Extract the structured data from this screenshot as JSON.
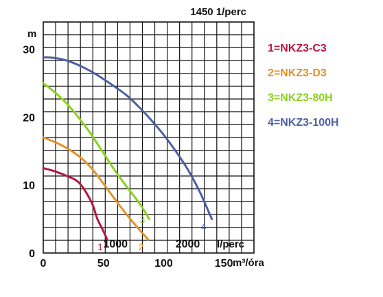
{
  "chart_data": {
    "type": "line",
    "title": "1450 1/perc",
    "ylabel": "m",
    "xlabel": "m³/óra",
    "xlabel_secondary": "l/perc",
    "xlim": [
      0,
      175
    ],
    "ylim": [
      0,
      34
    ],
    "grid": true,
    "legend_position": "right",
    "x_ticks": [
      "0",
      "50",
      "100",
      "150"
    ],
    "x_tick_values": [
      0,
      50,
      100,
      150
    ],
    "x_ticks_secondary": [
      "1000",
      "2000"
    ],
    "x_ticks_secondary_values": [
      60,
      120
    ],
    "y_ticks": [
      "0",
      "10",
      "20",
      "30"
    ],
    "y_tick_values": [
      0,
      10,
      20,
      30
    ],
    "series": [
      {
        "name": "1=NKZ3-C3",
        "marker_label": "1",
        "color": "#b5173f",
        "x": [
          0,
          10,
          20,
          30,
          40,
          45,
          50,
          53
        ],
        "y": [
          12.5,
          12.0,
          11.3,
          10.3,
          7.5,
          5.0,
          3.2,
          2.0
        ]
      },
      {
        "name": "2=NKZ3-D3",
        "marker_label": "2",
        "color": "#e0922a",
        "x": [
          0,
          10,
          20,
          30,
          40,
          50,
          60,
          70,
          80,
          87
        ],
        "y": [
          17.0,
          16.3,
          15.4,
          14.2,
          12.5,
          10.2,
          7.8,
          5.5,
          3.4,
          2.0
        ]
      },
      {
        "name": "3=NKZ3-80H",
        "marker_label": "3",
        "color": "#8ad11e",
        "x": [
          0,
          10,
          20,
          30,
          40,
          50,
          60,
          70,
          80,
          88
        ],
        "y": [
          25.0,
          23.6,
          21.9,
          19.8,
          17.4,
          14.7,
          12.0,
          9.6,
          7.3,
          5.0
        ]
      },
      {
        "name": "4=NKZ3-100H",
        "marker_label": "4",
        "color": "#4a5fa3",
        "x": [
          0,
          10,
          20,
          30,
          40,
          50,
          60,
          70,
          80,
          90,
          100,
          110,
          120,
          130,
          140
        ],
        "y": [
          28.8,
          28.7,
          28.3,
          27.6,
          26.7,
          25.6,
          24.4,
          23.1,
          21.4,
          19.5,
          17.4,
          15.0,
          12.3,
          9.0,
          5.0
        ]
      }
    ]
  }
}
